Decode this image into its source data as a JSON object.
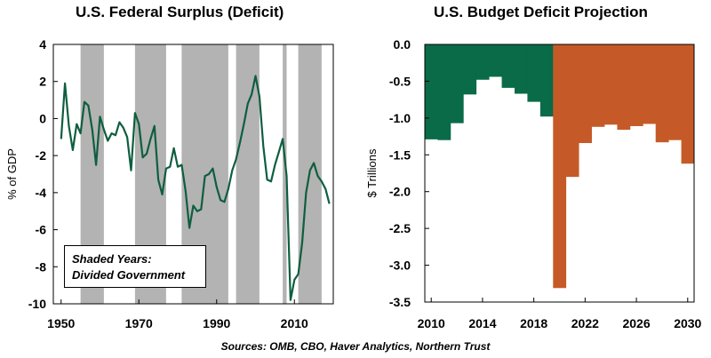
{
  "colors": {
    "surplus_line": "#0e5e3f",
    "shade": "#b3b3b3",
    "green_bar": "#0a6b48",
    "orange_bar": "#c55a28"
  },
  "footer": {
    "source": "Sources: OMB, CBO, Haver Analytics, Northern Trust"
  },
  "chart_data": [
    {
      "type": "line",
      "title": "U.S. Federal Surplus (Deficit)",
      "ylabel": "% of GDP",
      "xlabel": "",
      "xlim": [
        1948,
        2020
      ],
      "ylim": [
        -10,
        4
      ],
      "xticks": [
        1950,
        1970,
        1990,
        2010
      ],
      "yticks": [
        4,
        2,
        0,
        -2,
        -4,
        -6,
        -8,
        -10
      ],
      "annotation": [
        "Shaded Years:",
        "Divided Government"
      ],
      "shaded_periods": [
        [
          1955,
          1961
        ],
        [
          1969,
          1977
        ],
        [
          1981,
          1993
        ],
        [
          1995,
          2001
        ],
        [
          2007,
          2008
        ],
        [
          2011,
          2017
        ]
      ],
      "series": [
        {
          "x": [
            1950,
            1951,
            1952,
            1953,
            1954,
            1955,
            1956,
            1957,
            1958,
            1959,
            1960,
            1961,
            1962,
            1963,
            1964,
            1965,
            1966,
            1967,
            1968,
            1969,
            1970,
            1971,
            1972,
            1973,
            1974,
            1975,
            1976,
            1977,
            1978,
            1979,
            1980,
            1981,
            1982,
            1983,
            1984,
            1985,
            1986,
            1987,
            1988,
            1989,
            1990,
            1991,
            1992,
            1993,
            1994,
            1995,
            1996,
            1997,
            1998,
            1999,
            2000,
            2001,
            2002,
            2003,
            2004,
            2005,
            2006,
            2007,
            2008,
            2009,
            2010,
            2011,
            2012,
            2013,
            2014,
            2015,
            2016,
            2017,
            2018,
            2019
          ],
          "y": [
            -1.1,
            1.9,
            -0.4,
            -1.7,
            -0.3,
            -0.8,
            0.9,
            0.7,
            -0.6,
            -2.5,
            0.1,
            -0.6,
            -1.2,
            -0.8,
            -0.9,
            -0.2,
            -0.5,
            -1.0,
            -2.8,
            0.3,
            -0.3,
            -2.1,
            -1.9,
            -1.1,
            -0.4,
            -3.3,
            -4.1,
            -2.7,
            -2.6,
            -1.6,
            -2.6,
            -2.5,
            -3.9,
            -5.9,
            -4.7,
            -5.0,
            -4.9,
            -3.1,
            -3.0,
            -2.7,
            -3.7,
            -4.4,
            -4.5,
            -3.8,
            -2.8,
            -2.2,
            -1.3,
            -0.3,
            0.8,
            1.3,
            2.3,
            1.2,
            -1.5,
            -3.3,
            -3.4,
            -2.5,
            -1.8,
            -1.1,
            -3.1,
            -9.8,
            -8.7,
            -8.4,
            -6.7,
            -4.0,
            -2.8,
            -2.4,
            -3.1,
            -3.4,
            -3.8,
            -4.6
          ]
        }
      ]
    },
    {
      "type": "bar",
      "title": "U.S. Budget Deficit Projection",
      "ylabel": "$ Trillions",
      "xlabel": "",
      "ylim": [
        -3.5,
        0
      ],
      "yticks": [
        "0.0",
        "-0.5",
        "-1.0",
        "-1.5",
        "-2.0",
        "-2.5",
        "-3.0",
        "-3.5"
      ],
      "xticks": [
        2010,
        2014,
        2018,
        2022,
        2026,
        2030
      ],
      "categories": [
        2010,
        2011,
        2012,
        2013,
        2014,
        2015,
        2016,
        2017,
        2018,
        2019,
        2020,
        2021,
        2022,
        2023,
        2024,
        2025,
        2026,
        2027,
        2028,
        2029,
        2030
      ],
      "values": [
        -1.29,
        -1.3,
        -1.07,
        -0.68,
        -0.48,
        -0.44,
        -0.59,
        -0.67,
        -0.78,
        -0.98,
        -3.31,
        -1.8,
        -1.34,
        -1.12,
        -1.09,
        -1.16,
        -1.11,
        -1.08,
        -1.33,
        -1.3,
        -1.62
      ],
      "actual_through": 2019
    }
  ]
}
